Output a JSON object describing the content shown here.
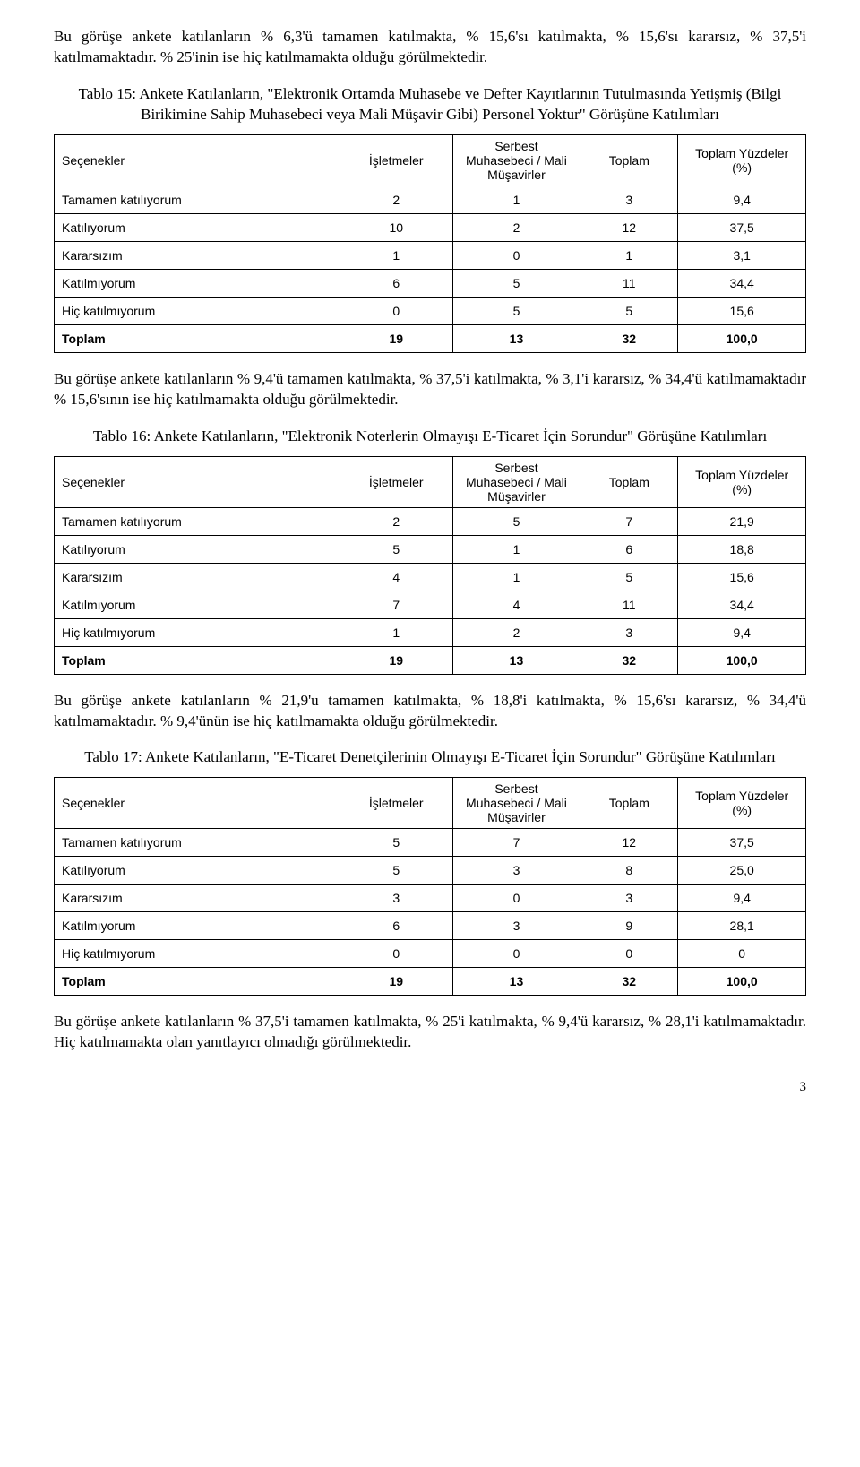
{
  "para1": "Bu görüşe ankete katılanların % 6,3'ü tamamen katılmakta, % 15,6'sı katılmakta, % 15,6'sı kararsız, % 37,5'i katılmamaktadır. % 25'inin ise hiç katılmamakta olduğu görülmektedir.",
  "table15": {
    "title": "Tablo 15: Ankete Katılanların, \"Elektronik Ortamda Muhasebe ve Defter Kayıtlarının Tutulmasında Yetişmiş (Bilgi Birikimine Sahip Muhasebeci veya Mali Müşavir Gibi) Personel Yoktur\" Görüşüne Katılımları",
    "headers": [
      "Seçenekler",
      "İşletmeler",
      "Serbest Muhasebeci / Mali Müşavirler",
      "Toplam",
      "Toplam Yüzdeler (%)"
    ],
    "rows": [
      [
        "Tamamen katılıyorum",
        "2",
        "1",
        "3",
        "9,4"
      ],
      [
        "Katılıyorum",
        "10",
        "2",
        "12",
        "37,5"
      ],
      [
        "Kararsızım",
        "1",
        "0",
        "1",
        "3,1"
      ],
      [
        "Katılmıyorum",
        "6",
        "5",
        "11",
        "34,4"
      ],
      [
        "Hiç katılmıyorum",
        "0",
        "5",
        "5",
        "15,6"
      ]
    ],
    "total": [
      "Toplam",
      "19",
      "13",
      "32",
      "100,0"
    ]
  },
  "para2": "Bu görüşe ankete katılanların % 9,4'ü tamamen katılmakta, % 37,5'i katılmakta, % 3,1'i kararsız, % 34,4'ü katılmamaktadır % 15,6'sının ise hiç katılmamakta olduğu görülmektedir.",
  "table16": {
    "title": "Tablo 16: Ankete Katılanların, \"Elektronik Noterlerin Olmayışı E-Ticaret İçin Sorundur\" Görüşüne Katılımları",
    "headers": [
      "Seçenekler",
      "İşletmeler",
      "Serbest Muhasebeci / Mali Müşavirler",
      "Toplam",
      "Toplam Yüzdeler (%)"
    ],
    "rows": [
      [
        "Tamamen katılıyorum",
        "2",
        "5",
        "7",
        "21,9"
      ],
      [
        "Katılıyorum",
        "5",
        "1",
        "6",
        "18,8"
      ],
      [
        "Kararsızım",
        "4",
        "1",
        "5",
        "15,6"
      ],
      [
        "Katılmıyorum",
        "7",
        "4",
        "11",
        "34,4"
      ],
      [
        "Hiç katılmıyorum",
        "1",
        "2",
        "3",
        "9,4"
      ]
    ],
    "total": [
      "Toplam",
      "19",
      "13",
      "32",
      "100,0"
    ]
  },
  "para3": "Bu görüşe ankete katılanların % 21,9'u tamamen katılmakta, % 18,8'i katılmakta, % 15,6'sı kararsız, % 34,4'ü katılmamaktadır. % 9,4'ünün ise hiç katılmamakta olduğu görülmektedir.",
  "table17": {
    "title": "Tablo 17: Ankete Katılanların, \"E-Ticaret Denetçilerinin Olmayışı E-Ticaret İçin Sorundur\" Görüşüne Katılımları",
    "headers": [
      "Seçenekler",
      "İşletmeler",
      "Serbest Muhasebeci / Mali Müşavirler",
      "Toplam",
      "Toplam Yüzdeler (%)"
    ],
    "rows": [
      [
        "Tamamen katılıyorum",
        "5",
        "7",
        "12",
        "37,5"
      ],
      [
        "Katılıyorum",
        "5",
        "3",
        "8",
        "25,0"
      ],
      [
        "Kararsızım",
        "3",
        "0",
        "3",
        "9,4"
      ],
      [
        "Katılmıyorum",
        "6",
        "3",
        "9",
        "28,1"
      ],
      [
        "Hiç katılmıyorum",
        "0",
        "0",
        "0",
        "0"
      ]
    ],
    "total": [
      "Toplam",
      "19",
      "13",
      "32",
      "100,0"
    ]
  },
  "para4": "Bu görüşe ankete katılanların % 37,5'i tamamen katılmakta, % 25'i katılmakta, % 9,4'ü kararsız, % 28,1'i katılmamaktadır. Hiç katılmamakta olan yanıtlayıcı olmadığı görülmektedir.",
  "pageNumber": "3"
}
